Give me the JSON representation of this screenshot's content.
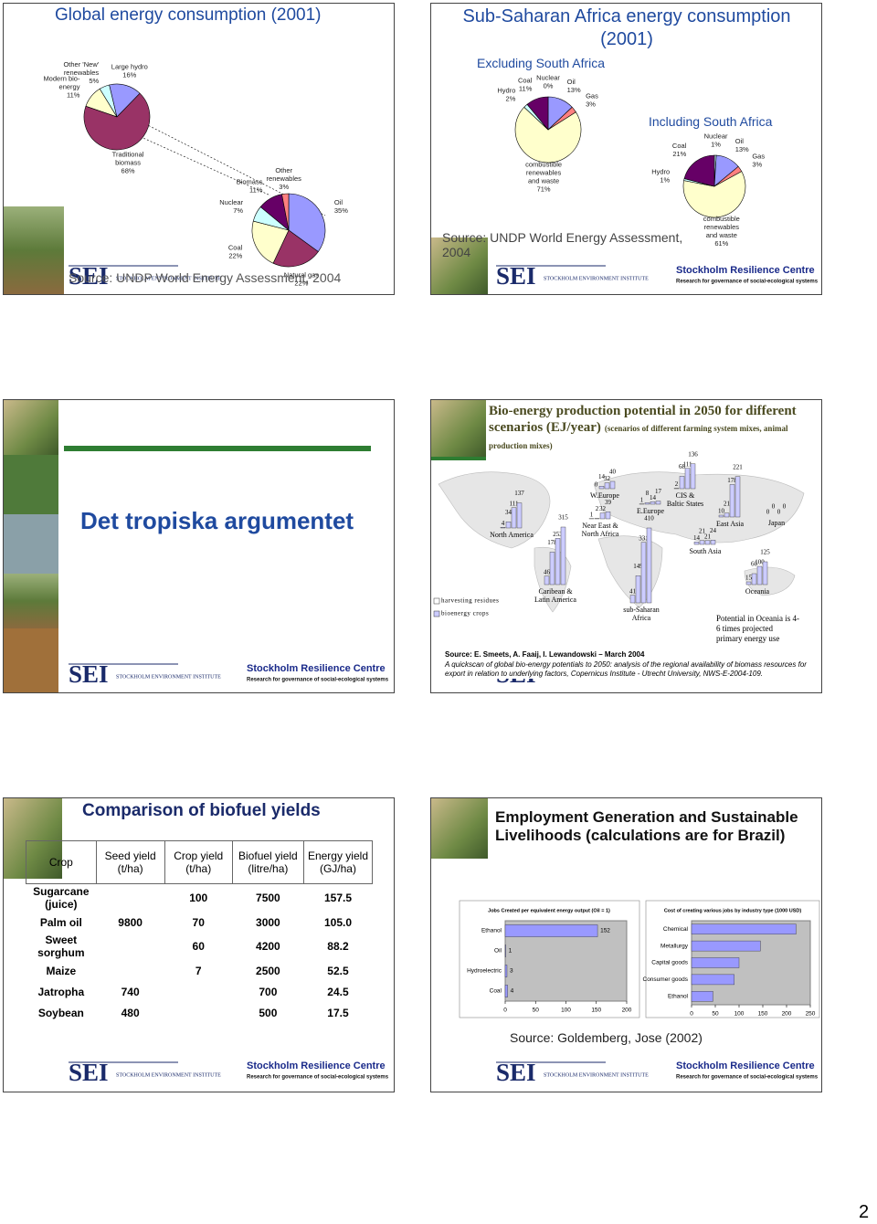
{
  "page_number": "2",
  "footer": {
    "centre": "Stockholm Resilience Centre",
    "tagline": "Research for governance of social-ecological systems",
    "logo": "SEI",
    "institute": "STOCKHOLM ENVIRONMENT INSTITUTE"
  },
  "slides": [
    {
      "title": "Global energy consumption (2001)",
      "source": "Source: UNDP World Energy Assessment, 2004",
      "charts": [
        {
          "type": "pie",
          "slices": [
            {
              "label": [
                "Modern bio-",
                "energy"
              ],
              "value": 11,
              "value_label": "11%",
              "color": "#ffffcc"
            },
            {
              "label": [
                "Other 'New'",
                "renewables"
              ],
              "value": 5,
              "value_label": "5%",
              "color": "#ccffff"
            },
            {
              "label": [
                "Large hydro"
              ],
              "value": 16,
              "value_label": "16%",
              "color": "#9999ff"
            },
            {
              "label": [
                "Traditional",
                "biomass"
              ],
              "value": 68,
              "value_label": "68%",
              "color": "#993366"
            }
          ]
        },
        {
          "type": "pie",
          "slices": [
            {
              "label": [
                "Oil"
              ],
              "value": 35,
              "value_label": "35%",
              "color": "#9999ff"
            },
            {
              "label": [
                "Natural gas"
              ],
              "value": 22,
              "value_label": "22%",
              "color": "#993366"
            },
            {
              "label": [
                "Coal"
              ],
              "value": 22,
              "value_label": "22%",
              "color": "#ffffcc"
            },
            {
              "label": [
                "Nuclear"
              ],
              "value": 7,
              "value_label": "7%",
              "color": "#ccffff"
            },
            {
              "label": [
                "Biomass"
              ],
              "value": 11,
              "value_label": "11%",
              "color": "#660066"
            },
            {
              "label": [
                "Other",
                "renewables"
              ],
              "value": 3,
              "value_label": "3%",
              "color": "#ff8080"
            }
          ]
        }
      ]
    },
    {
      "title": "Sub-Saharan Africa energy consumption (2001)",
      "source": "Source: UNDP World Energy Assessment, 2004",
      "charts": [
        {
          "type": "pie",
          "subtitle": "Excluding South Africa",
          "slices": [
            {
              "label": [
                "Nuclear"
              ],
              "value": 0,
              "value_label": "0%",
              "color": "#ccffff"
            },
            {
              "label": [
                "Oil"
              ],
              "value": 13,
              "value_label": "13%",
              "color": "#9999ff"
            },
            {
              "label": [
                "Gas"
              ],
              "value": 3,
              "value_label": "3%",
              "color": "#ff8080"
            },
            {
              "label": [
                "combustible",
                "renewables",
                "and waste"
              ],
              "value": 71,
              "value_label": "71%",
              "color": "#ffffcc"
            },
            {
              "label": [
                "Hydro"
              ],
              "value": 2,
              "value_label": "2%",
              "color": "#ccffff"
            },
            {
              "label": [
                "Coal"
              ],
              "value": 11,
              "value_label": "11%",
              "color": "#660066"
            }
          ]
        },
        {
          "type": "pie",
          "subtitle": "Including South Africa",
          "slices": [
            {
              "label": [
                "Nuclear"
              ],
              "value": 1,
              "value_label": "1%",
              "color": "#ccffff"
            },
            {
              "label": [
                "Oil"
              ],
              "value": 13,
              "value_label": "13%",
              "color": "#9999ff"
            },
            {
              "label": [
                "Gas"
              ],
              "value": 3,
              "value_label": "3%",
              "color": "#ff8080"
            },
            {
              "label": [
                "combustible",
                "renewables",
                "and waste"
              ],
              "value": 61,
              "value_label": "61%",
              "color": "#ffffcc"
            },
            {
              "label": [
                "Hydro"
              ],
              "value": 1,
              "value_label": "1%",
              "color": "#ccffff"
            },
            {
              "label": [
                "Coal"
              ],
              "value": 21,
              "value_label": "21%",
              "color": "#660066"
            }
          ]
        }
      ]
    },
    {
      "title": "Det tropiska argumentet"
    },
    {
      "title": "Bio-energy production potential in 2050 for different scenarios (EJ/year)",
      "subtitle": "(scenarios of different farming system mixes, animal production mixes)",
      "legend": [
        {
          "name": "harvesting residues",
          "color": "#ffffff"
        },
        {
          "name": "bioenergy crops",
          "color": "#ccccff"
        }
      ],
      "regions": [
        {
          "label": [
            "North America"
          ],
          "values": [
            4,
            34,
            111,
            137
          ]
        },
        {
          "label": [
            "Caribean &",
            "Latin America"
          ],
          "values": [
            46,
            178,
            253,
            315
          ]
        },
        {
          "label": [
            "W.Europe"
          ],
          "values": [
            0,
            14,
            32,
            40
          ]
        },
        {
          "label": [
            "Near East &",
            "North Africa"
          ],
          "values": [
            1,
            2,
            32,
            39
          ]
        },
        {
          "label": [
            "E.Europe"
          ],
          "values": [
            1,
            8,
            14,
            17
          ]
        },
        {
          "label": [
            "CIS &",
            "Baltic States"
          ],
          "values": [
            2,
            68,
            111,
            136
          ]
        },
        {
          "label": [
            "sub-Saharan",
            "Africa"
          ],
          "values": [
            41,
            149,
            331,
            410
          ]
        },
        {
          "label": [
            "South Asia"
          ],
          "values": [
            14,
            21,
            21,
            24
          ]
        },
        {
          "label": [
            "East Asia"
          ],
          "values": [
            10,
            21,
            178,
            221
          ]
        },
        {
          "label": [
            "Japan"
          ],
          "values": [
            0,
            0,
            0,
            0
          ]
        },
        {
          "label": [
            "Oceania"
          ],
          "values": [
            15,
            60,
            100,
            125
          ]
        }
      ],
      "note": "Potential in Oceania is 4-6 times projected primary energy use",
      "source": "Source: E. Smeets, A. Faaij, I. Lewandowski – March 2004",
      "citation": "A quickscan of global bio-energy potentials to 2050: analysis of the regional availability of biomass resources for export in relation to underlying factors, Copernicus Institute - Utrecht University, NWS-E-2004-109."
    },
    {
      "title": "Comparison of biofuel yields",
      "table": {
        "header": [
          "Crop",
          "Seed yield (t/ha)",
          "Crop yield (t/ha)",
          "Biofuel yield (litre/ha)",
          "Energy yield (GJ/ha)"
        ],
        "rows": [
          [
            "Sugarcane (juice)",
            null,
            "100",
            "7500",
            "157.5"
          ],
          [
            "Palm oil",
            "9800",
            "70",
            "3000",
            "105.0"
          ],
          [
            "Sweet sorghum",
            null,
            "60",
            "4200",
            "88.2"
          ],
          [
            "Maize",
            null,
            "7",
            "2500",
            "52.5"
          ],
          [
            "Jatropha",
            "740",
            null,
            "700",
            "24.5"
          ],
          [
            "Soybean",
            "480",
            null,
            "500",
            "17.5"
          ]
        ]
      }
    },
    {
      "title": "Employment Generation and Sustainable Livelihoods (calculations are for Brazil)",
      "source": "Source: Goldemberg, Jose (2002)",
      "charts": [
        {
          "type": "hbar",
          "title": "Jobs Created per equivalent energy output (Oil = 1)",
          "categories": [
            "Ethanol",
            "Oil",
            "Hydroelectric",
            "Coal"
          ],
          "values": [
            152,
            1,
            3,
            4
          ],
          "data_labels": true,
          "color": "#9999ff",
          "xlim": [
            0,
            200
          ],
          "xticks": [
            0,
            50,
            100,
            150,
            200
          ]
        },
        {
          "type": "hbar",
          "title": "Cost of creating various jobs by industry type (1000 USD)",
          "categories": [
            "Chemical",
            "Metallurgy",
            "Capital goods",
            "Consumer goods",
            "Ethanol"
          ],
          "values": [
            220,
            145,
            100,
            90,
            45
          ],
          "data_labels": false,
          "color": "#9999ff",
          "xlim": [
            0,
            250
          ],
          "xticks": [
            0,
            50,
            100,
            150,
            200,
            250
          ]
        }
      ]
    }
  ]
}
